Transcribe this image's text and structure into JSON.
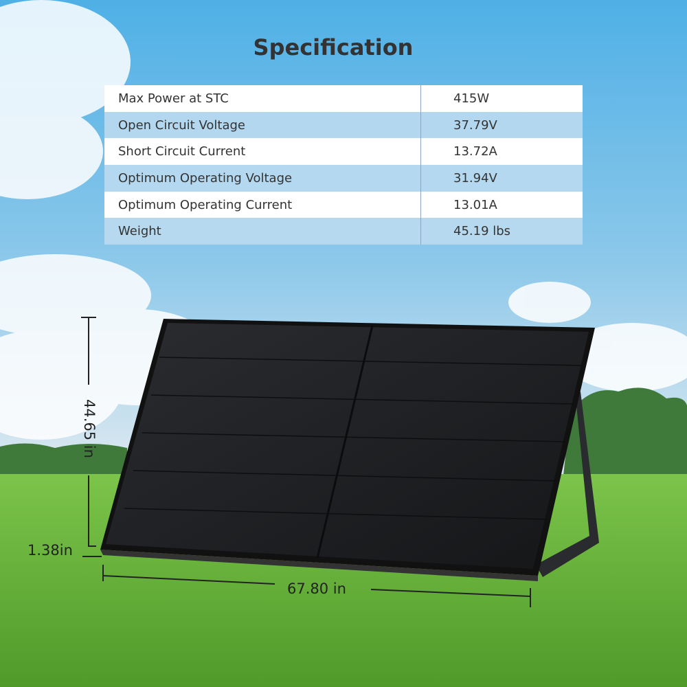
{
  "title": "Specification",
  "specs": [
    {
      "label": "Max Power at STC",
      "value": "415W"
    },
    {
      "label": "Open Circuit Voltage",
      "value": "37.79V"
    },
    {
      "label": "Short Circuit Current",
      "value": "13.72A"
    },
    {
      "label": "Optimum Operating Voltage",
      "value": "31.94V"
    },
    {
      "label": "Optimum Operating Current",
      "value": "13.01A"
    },
    {
      "label": "Weight",
      "value": "45.19 lbs"
    }
  ],
  "dimensions": {
    "height": "44.65 in",
    "thickness": "1.38in",
    "width": "67.80 in"
  }
}
